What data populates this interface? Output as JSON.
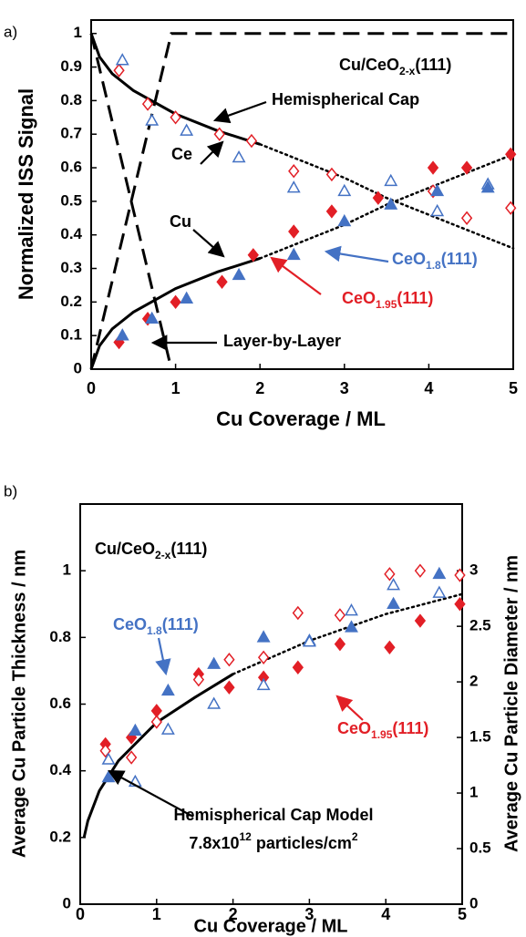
{
  "chart_data": [
    {
      "type": "scatter",
      "label": "a)",
      "x_label": "Cu Coverage / ML",
      "y_label": "Normalized ISS Signal",
      "xlim": [
        0,
        5
      ],
      "ylim": [
        0,
        1.04
      ],
      "xticks": [
        0,
        1,
        2,
        3,
        4,
        5
      ],
      "yticks": [
        0,
        0.1,
        0.2,
        0.3,
        0.4,
        0.5,
        0.6,
        0.7,
        0.8,
        0.9,
        1
      ],
      "grid": false,
      "annotations": [
        {
          "parts": [
            {
              "text": "Cu/CeO"
            },
            {
              "text": "2-x",
              "shift": "sub"
            },
            {
              "text": "(111)"
            }
          ],
          "color": "#000000"
        },
        {
          "parts": [
            {
              "text": "Hemispherical Cap"
            }
          ],
          "color": "#000000"
        },
        {
          "parts": [
            {
              "text": "Ce"
            }
          ],
          "color": "#000000"
        },
        {
          "parts": [
            {
              "text": "Cu"
            }
          ],
          "color": "#000000"
        },
        {
          "parts": [
            {
              "text": "CeO"
            },
            {
              "text": "1.8",
              "shift": "sub"
            },
            {
              "text": "(111)"
            }
          ],
          "color": "#4472c4"
        },
        {
          "parts": [
            {
              "text": "CeO"
            },
            {
              "text": "1.95",
              "shift": "sub"
            },
            {
              "text": "(111)"
            }
          ],
          "color": "#e21f26"
        },
        {
          "parts": [
            {
              "text": "Layer-by-Layer"
            }
          ],
          "color": "#000000"
        }
      ],
      "series": [
        {
          "mode": "lines",
          "style": "solid",
          "color": "#000000",
          "x": [
            0,
            0.1,
            0.25,
            0.5,
            1,
            1.5,
            2
          ],
          "values": [
            1,
            0.93,
            0.88,
            0.83,
            0.76,
            0.71,
            0.67
          ]
        },
        {
          "mode": "lines",
          "style": "dotted",
          "color": "#000000",
          "x": [
            2,
            2.5,
            3,
            3.5,
            4,
            4.5,
            5
          ],
          "values": [
            0.67,
            0.62,
            0.57,
            0.51,
            0.46,
            0.41,
            0.36
          ]
        },
        {
          "mode": "lines",
          "style": "solid",
          "color": "#000000",
          "x": [
            0,
            0.1,
            0.25,
            0.5,
            1,
            1.5,
            2
          ],
          "values": [
            0,
            0.07,
            0.12,
            0.17,
            0.24,
            0.29,
            0.33
          ]
        },
        {
          "mode": "lines",
          "style": "dotted",
          "color": "#000000",
          "x": [
            2,
            2.5,
            3,
            3.5,
            4,
            4.5,
            5
          ],
          "values": [
            0.33,
            0.38,
            0.43,
            0.49,
            0.54,
            0.59,
            0.64
          ]
        },
        {
          "mode": "lines",
          "style": "dashed",
          "color": "#000000",
          "x": [
            0,
            0.95
          ],
          "values": [
            1,
            0
          ]
        },
        {
          "mode": "lines",
          "style": "dashed",
          "color": "#000000",
          "x": [
            0,
            0.95,
            5
          ],
          "values": [
            0,
            1,
            1
          ]
        },
        {
          "mode": "markers",
          "marker": "diamond",
          "filled": false,
          "color": "#e21f26",
          "x": [
            0.33,
            0.67,
            1.0,
            1.52,
            1.9,
            2.4,
            2.85,
            4.05,
            4.45,
            4.97
          ],
          "values": [
            0.89,
            0.79,
            0.75,
            0.7,
            0.68,
            0.59,
            0.58,
            0.53,
            0.45,
            0.48
          ]
        },
        {
          "mode": "markers",
          "marker": "triangle",
          "filled": false,
          "color": "#4472c4",
          "x": [
            0.37,
            0.72,
            1.13,
            1.75,
            2.4,
            3.0,
            3.55,
            4.1,
            4.7
          ],
          "values": [
            0.92,
            0.74,
            0.71,
            0.63,
            0.54,
            0.53,
            0.56,
            0.47,
            0.55
          ]
        },
        {
          "mode": "markers",
          "marker": "diamond",
          "filled": true,
          "color": "#e21f26",
          "x": [
            0.33,
            0.67,
            1.0,
            1.55,
            1.92,
            2.4,
            2.85,
            3.4,
            4.05,
            4.45,
            4.97
          ],
          "values": [
            0.08,
            0.15,
            0.2,
            0.26,
            0.34,
            0.41,
            0.47,
            0.51,
            0.6,
            0.6,
            0.64
          ]
        },
        {
          "mode": "markers",
          "marker": "triangle",
          "filled": true,
          "color": "#4472c4",
          "x": [
            0.37,
            0.72,
            1.13,
            1.75,
            2.4,
            3.0,
            3.55,
            4.1,
            4.7
          ],
          "values": [
            0.1,
            0.15,
            0.21,
            0.28,
            0.34,
            0.44,
            0.49,
            0.53,
            0.54
          ]
        }
      ]
    },
    {
      "type": "scatter",
      "label": "b)",
      "x_label": "Cu Coverage / ML",
      "y_label": "Average Cu Particle Thickness / nm",
      "y2_label": "Average Cu Particle Diameter / nm",
      "xlim": [
        0,
        5
      ],
      "ylim": [
        0,
        1.2
      ],
      "y2lim": [
        0,
        3.6
      ],
      "xticks": [
        0,
        1,
        2,
        3,
        4,
        5
      ],
      "yticks": [
        0,
        0.2,
        0.4,
        0.6,
        0.8,
        1
      ],
      "y2ticks": [
        0,
        0.5,
        1,
        1.5,
        2,
        2.5,
        3
      ],
      "grid": false,
      "annotations": [
        {
          "parts": [
            {
              "text": "Cu/CeO"
            },
            {
              "text": "2-x",
              "shift": "sub"
            },
            {
              "text": "(111)"
            }
          ],
          "color": "#000000"
        },
        {
          "parts": [
            {
              "text": "CeO"
            },
            {
              "text": "1.8",
              "shift": "sub"
            },
            {
              "text": "(111)"
            }
          ],
          "color": "#4472c4"
        },
        {
          "parts": [
            {
              "text": "CeO"
            },
            {
              "text": "1.95",
              "shift": "sub"
            },
            {
              "text": "(111)"
            }
          ],
          "color": "#e21f26"
        },
        {
          "parts": [
            {
              "text": "Hemispherical Cap Model"
            }
          ],
          "color": "#000000"
        },
        {
          "parts": [
            {
              "text": "7.8x10"
            },
            {
              "text": "12",
              "shift": "super"
            },
            {
              "text": " particles/cm"
            },
            {
              "text": "2",
              "shift": "super"
            }
          ],
          "color": "#000000"
        }
      ],
      "series": [
        {
          "mode": "lines",
          "style": "solid",
          "color": "#000000",
          "x": [
            0.05,
            0.1,
            0.25,
            0.5,
            1,
            1.5,
            2
          ],
          "values": [
            0.2,
            0.25,
            0.34,
            0.43,
            0.545,
            0.62,
            0.69
          ]
        },
        {
          "mode": "lines",
          "style": "dotted",
          "color": "#000000",
          "x": [
            2,
            2.5,
            3,
            3.5,
            4,
            4.5,
            5
          ],
          "values": [
            0.69,
            0.74,
            0.79,
            0.83,
            0.87,
            0.9,
            0.93
          ]
        },
        {
          "mode": "markers",
          "marker": "diamond",
          "filled": true,
          "color": "#e21f26",
          "x": [
            0.33,
            0.67,
            1.0,
            1.55,
            1.95,
            2.4,
            2.85,
            3.4,
            4.05,
            4.45,
            4.97
          ],
          "values": [
            0.48,
            0.5,
            0.58,
            0.69,
            0.65,
            0.68,
            0.71,
            0.78,
            0.77,
            0.85,
            0.9
          ]
        },
        {
          "mode": "markers",
          "marker": "triangle",
          "filled": true,
          "color": "#4472c4",
          "x": [
            0.37,
            0.72,
            1.15,
            1.75,
            2.4,
            3.0,
            3.55,
            4.1,
            4.7
          ],
          "values": [
            0.38,
            0.52,
            0.64,
            0.72,
            0.8,
            0.79,
            0.83,
            0.9,
            0.99
          ]
        },
        {
          "mode": "markers",
          "marker": "diamond",
          "filled": false,
          "axis": "y2",
          "color": "#e21f26",
          "x": [
            0.33,
            0.67,
            1.0,
            1.55,
            1.95,
            2.4,
            2.85,
            3.4,
            4.05,
            4.45,
            4.97
          ],
          "values": [
            1.38,
            1.32,
            1.64,
            2.02,
            2.2,
            2.22,
            2.62,
            2.6,
            2.97,
            3.0,
            2.96
          ]
        },
        {
          "mode": "markers",
          "marker": "triangle",
          "filled": false,
          "axis": "y2",
          "color": "#4472c4",
          "x": [
            0.37,
            0.72,
            1.15,
            1.75,
            2.4,
            3.0,
            3.55,
            4.1,
            4.7
          ],
          "values": [
            1.3,
            1.1,
            1.57,
            1.8,
            1.97,
            2.36,
            2.64,
            2.87,
            2.8
          ]
        }
      ]
    }
  ]
}
